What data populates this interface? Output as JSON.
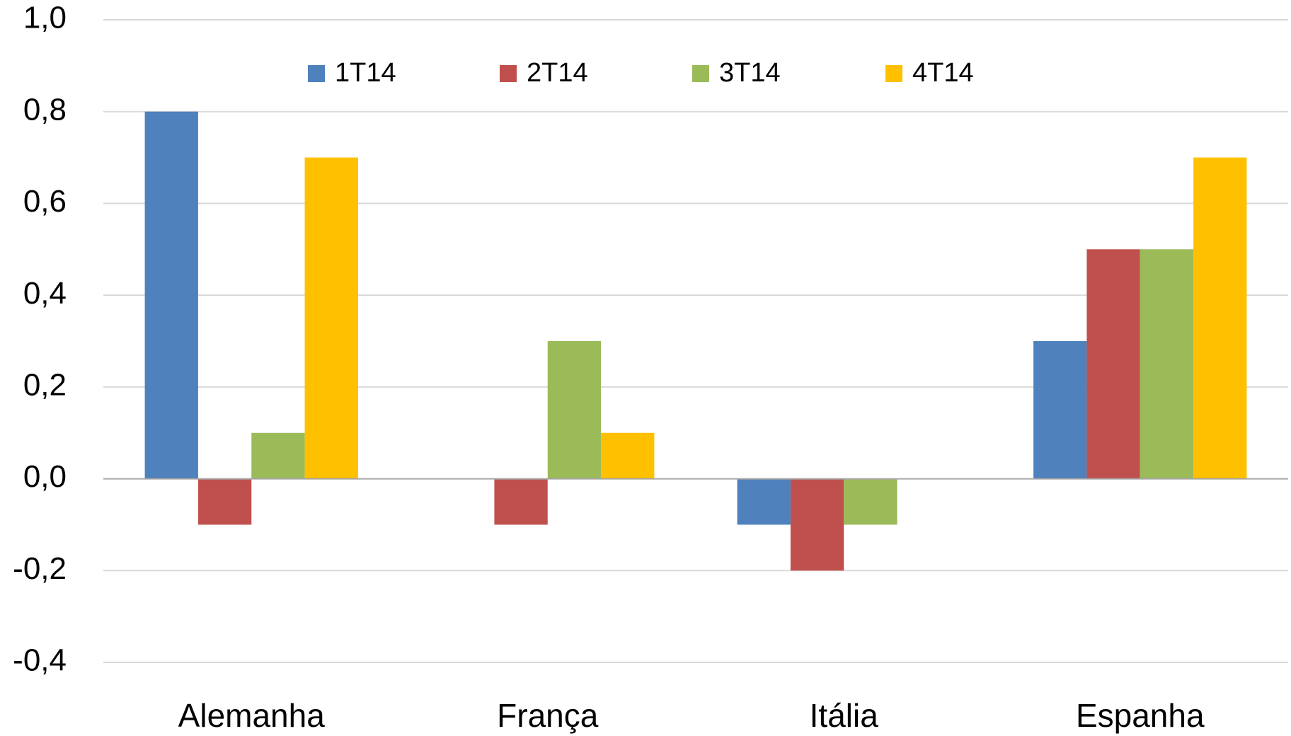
{
  "chart_data": {
    "type": "bar",
    "categories": [
      "Alemanha",
      "França",
      "Itália",
      "Espanha"
    ],
    "series": [
      {
        "name": "1T14",
        "color": "#4f81bd",
        "values": [
          0.8,
          0,
          -0.1,
          0.3
        ]
      },
      {
        "name": "2T14",
        "color": "#c0504d",
        "values": [
          -0.1,
          -0.1,
          -0.2,
          0.5
        ]
      },
      {
        "name": "3T14",
        "color": "#9bbb59",
        "values": [
          0.1,
          0.3,
          -0.1,
          0.5
        ]
      },
      {
        "name": "4T14",
        "color": "#ffc000",
        "values": [
          0.7,
          0.1,
          0,
          0.7
        ]
      }
    ],
    "ylim": [
      -0.4,
      1.0
    ],
    "yticks": [
      {
        "value": -0.4,
        "label": "-0,4"
      },
      {
        "value": -0.2,
        "label": "-0,2"
      },
      {
        "value": 0,
        "label": "0,0"
      },
      {
        "value": 0.2,
        "label": "0,2"
      },
      {
        "value": 0.4,
        "label": "0,4"
      },
      {
        "value": 0.6,
        "label": "0,6"
      },
      {
        "value": 0.8,
        "label": "0,8"
      },
      {
        "value": 1.0,
        "label": "1,0"
      }
    ],
    "grid": true,
    "legend": "top"
  }
}
